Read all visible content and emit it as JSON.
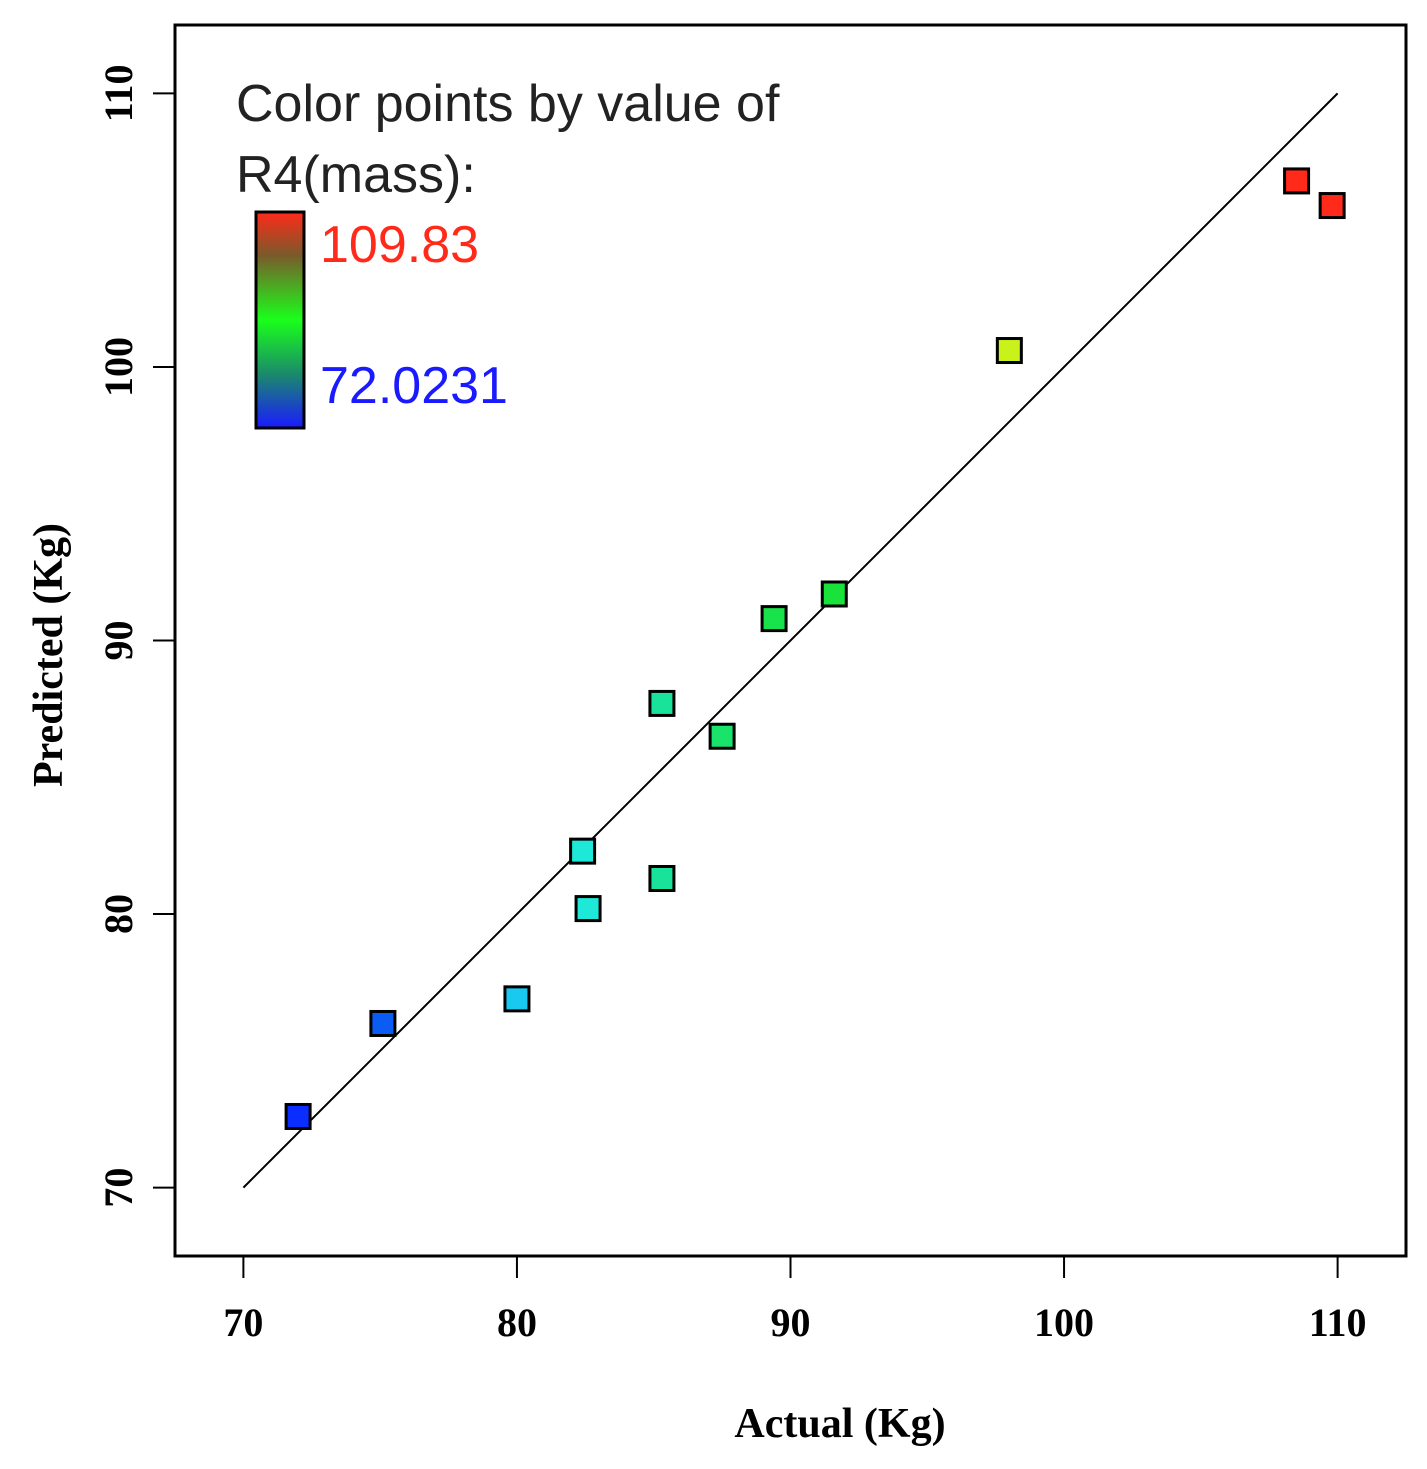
{
  "chart_data": {
    "type": "scatter",
    "title": "",
    "xlabel": "Actual (Kg)",
    "ylabel": "Predicted (Kg)",
    "xlim": [
      67.5,
      112.5
    ],
    "ylim": [
      67.5,
      112.5
    ],
    "x_ticks": [
      "70",
      "80",
      "90",
      "100",
      "110"
    ],
    "y_ticks": [
      "70",
      "80",
      "90",
      "100",
      "110"
    ],
    "x_tick_values": [
      70,
      80,
      90,
      100,
      110
    ],
    "y_tick_values": [
      70,
      80,
      90,
      100,
      110
    ],
    "grid": false,
    "reference_line": {
      "from": [
        70,
        70
      ],
      "to": [
        110,
        110
      ],
      "color": "#000000"
    },
    "legend": {
      "title_line1": "Color points by value of",
      "title_line2": "R4(mass):",
      "max_label": "109.83",
      "min_label": "72.0231",
      "max_color": "#ff2a1a",
      "min_color": "#1a1aff",
      "placement": "top-left"
    },
    "points": [
      {
        "x": 72.0,
        "y": 72.6,
        "color": "#0b2dff"
      },
      {
        "x": 75.1,
        "y": 76.0,
        "color": "#0a5cf2"
      },
      {
        "x": 80.0,
        "y": 76.9,
        "color": "#19c9f0"
      },
      {
        "x": 82.4,
        "y": 82.3,
        "color": "#1ee8d8"
      },
      {
        "x": 82.6,
        "y": 80.2,
        "color": "#1ee8d8"
      },
      {
        "x": 85.3,
        "y": 81.3,
        "color": "#19e39a"
      },
      {
        "x": 85.3,
        "y": 87.7,
        "color": "#19e39a"
      },
      {
        "x": 87.5,
        "y": 86.5,
        "color": "#19e36a"
      },
      {
        "x": 89.4,
        "y": 90.8,
        "color": "#19e34a"
      },
      {
        "x": 91.6,
        "y": 91.7,
        "color": "#19e33a"
      },
      {
        "x": 98.0,
        "y": 100.6,
        "color": "#c8f21a"
      },
      {
        "x": 108.5,
        "y": 106.8,
        "color": "#ff2a1a"
      },
      {
        "x": 109.8,
        "y": 105.9,
        "color": "#ff2a1a"
      }
    ]
  }
}
